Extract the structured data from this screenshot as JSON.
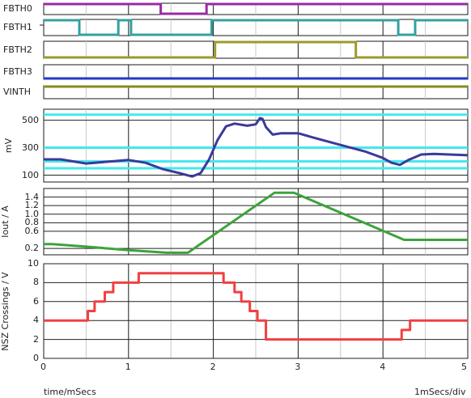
{
  "digital_labels": [
    "FBTH0",
    "FBTH1",
    "FBTH2",
    "FBTH3",
    "VINTH"
  ],
  "footer": {
    "x_axis_label": "time/mSecs",
    "scale_label": "1mSecs/div"
  },
  "colors": {
    "fbth0": "#9b2aa3",
    "fbth1": "#34a09e",
    "fbth2": "#9a9a2e",
    "fbth3": "#2437c8",
    "vinth": "#8a8a1e",
    "mv": "#3a3a9c",
    "threshold": "#44e8ee",
    "iout": "#3ca33c",
    "nsz": "#f04040"
  },
  "chart_data": [
    {
      "type": "line",
      "subtype": "digital",
      "series": [
        {
          "name": "FBTH0",
          "x": [
            0,
            1.38,
            1.38,
            1.92,
            1.92,
            5
          ],
          "y": [
            1,
            1,
            0,
            0,
            1,
            1
          ]
        },
        {
          "name": "FBTH1",
          "x": [
            0,
            0.42,
            0.42,
            0.88,
            0.88,
            1.03,
            1.03,
            1.98,
            1.98,
            4.18,
            4.18,
            4.38,
            4.38,
            5
          ],
          "y": [
            1,
            1,
            0,
            0,
            1,
            1,
            0,
            0,
            1,
            1,
            0,
            0,
            1,
            1
          ]
        },
        {
          "name": "FBTH2",
          "x": [
            0,
            2.02,
            2.02,
            3.68,
            3.68,
            5
          ],
          "y": [
            0,
            0,
            1,
            1,
            0,
            0
          ]
        },
        {
          "name": "FBTH3",
          "x": [
            0,
            5
          ],
          "y": [
            0,
            0
          ]
        },
        {
          "name": "VINTH",
          "x": [
            0,
            5
          ],
          "y": [
            1,
            1
          ]
        }
      ],
      "xlim": [
        0,
        5
      ],
      "grid": true
    },
    {
      "type": "line",
      "ylabel": "mV",
      "ylim": [
        50,
        580
      ],
      "yticks": [
        100,
        300,
        500
      ],
      "xlim": [
        0,
        5
      ],
      "grid": true,
      "thresholds": [
        540,
        300,
        200,
        150
      ],
      "x": [
        0,
        0.2,
        0.5,
        0.8,
        1.0,
        1.2,
        1.4,
        1.6,
        1.75,
        1.85,
        1.95,
        2.05,
        2.15,
        2.25,
        2.4,
        2.5,
        2.55,
        2.58,
        2.62,
        2.7,
        2.8,
        3.0,
        3.2,
        3.5,
        3.8,
        4.0,
        4.1,
        4.2,
        4.3,
        4.45,
        4.6,
        5.0
      ],
      "y": [
        215,
        215,
        185,
        200,
        210,
        190,
        145,
        115,
        90,
        115,
        215,
        355,
        455,
        475,
        460,
        470,
        515,
        510,
        450,
        395,
        405,
        405,
        370,
        320,
        270,
        225,
        190,
        175,
        210,
        250,
        255,
        245
      ]
    },
    {
      "type": "line",
      "ylabel": "Iout / A",
      "ylim": [
        0.05,
        1.6
      ],
      "yticks": [
        0.2,
        0.6,
        0.8,
        1.0,
        1.2,
        1.4
      ],
      "xlim": [
        0,
        5
      ],
      "grid": true,
      "x": [
        0,
        0.1,
        0.5,
        1.0,
        1.45,
        1.7,
        2.72,
        2.95,
        4.25,
        5.0
      ],
      "y": [
        0.3,
        0.3,
        0.24,
        0.16,
        0.1,
        0.1,
        1.5,
        1.5,
        0.4,
        0.4
      ]
    },
    {
      "type": "line",
      "subtype": "step",
      "ylabel": "NSZ Crossings / V",
      "xlabel": "time/mSecs",
      "ylim": [
        0,
        10
      ],
      "yticks": [
        0,
        2,
        4,
        6,
        8,
        10
      ],
      "xlim": [
        0,
        5
      ],
      "xticks": [
        0,
        1,
        2,
        3,
        4,
        5
      ],
      "grid": true,
      "x": [
        0,
        0.52,
        0.6,
        0.72,
        0.82,
        1.12,
        2.12,
        2.25,
        2.33,
        2.43,
        2.52,
        2.62,
        4.22,
        4.32,
        5.0
      ],
      "y": [
        4,
        5,
        6,
        7,
        8,
        9,
        8,
        7,
        6,
        5,
        4,
        2,
        3,
        4,
        4
      ]
    }
  ]
}
